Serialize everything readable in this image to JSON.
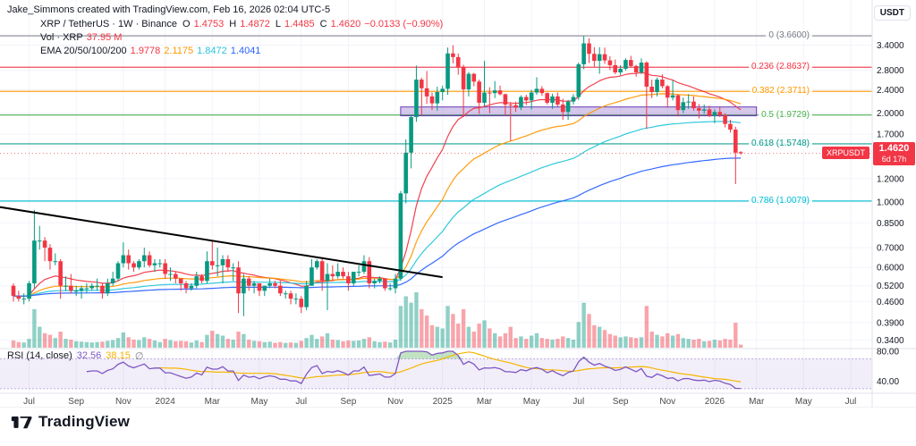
{
  "header": {
    "attribution": "Jake_Simmons created with TradingView.com, Feb 16, 2026 02:04 UTC-5"
  },
  "legend": {
    "title": "XRP / TetherUS · 1W · Binance",
    "o_label": "O",
    "o": "1.4753",
    "h_label": "H",
    "h": "1.4872",
    "l_label": "L",
    "l": "1.4485",
    "c_label": "C",
    "c": "1.4620",
    "change": "−0.0133 (−0.90%)"
  },
  "volume_legend": {
    "title": "Vol · XRP",
    "value": "37.95 M"
  },
  "ema_legend": {
    "title": "EMA 20/50/100/200",
    "v20": "1.9778",
    "v50": "2.1175",
    "v100": "1.8472",
    "v200": "1.4041"
  },
  "rsi_legend": {
    "title": "RSI (14, close)",
    "value": "32.56",
    "ma": "38.15",
    "hide_icon": "∅"
  },
  "price_axis": {
    "currency": "USDT",
    "badge_price": "1.4620",
    "badge_countdown": "6d 17h",
    "float_label": "XRPUSDT"
  },
  "rsi_axis": {
    "values": [
      80,
      40
    ]
  },
  "footer": {
    "brand": "TradingView"
  },
  "colors": {
    "up": "#089981",
    "down": "#f23645",
    "vol_up": "rgba(8,153,129,0.45)",
    "vol_down": "rgba(242,54,69,0.45)",
    "ema20": "#f23645",
    "ema50": "#ff9800",
    "ema100": "#26c6da",
    "ema200": "#2962ff",
    "grid": "#f0f3fa",
    "axis_border": "#e0e3eb",
    "text": "#131722",
    "muted": "#787b86",
    "rsi": "#7e57c2",
    "rsi_ma": "#f7b500",
    "rsi_band": "rgba(126,87,194,0.10)",
    "rsi_fill": "rgba(76,175,80,0.35)",
    "zone_fill": "rgba(103,58,183,0.28)",
    "zone_border": "#673ab7",
    "trend": "#000000",
    "badge": "#f23645"
  },
  "chart_data": {
    "type": "candlestick",
    "title": "XRP / TetherUS weekly with EMAs, Fibonacci retracement, volume and RSI",
    "symbol": "XRP/TetherUS",
    "exchange": "Binance",
    "timeframe": "1W",
    "price_scale": "log",
    "ylim": [
      0.34,
      3.7
    ],
    "current_price": 1.462,
    "price_ticks": [
      3.4,
      2.8,
      2.4,
      2.0,
      1.7,
      1.2,
      1.0,
      0.85,
      0.7,
      0.6,
      0.52,
      0.46,
      0.39,
      0.34
    ],
    "time_ticks": [
      {
        "i": 3,
        "t": "Jul"
      },
      {
        "i": 12,
        "t": "Sep"
      },
      {
        "i": 21,
        "t": "Nov"
      },
      {
        "i": 29,
        "t": "2024"
      },
      {
        "i": 38,
        "t": "Mar"
      },
      {
        "i": 47,
        "t": "May"
      },
      {
        "i": 55,
        "t": "Jul"
      },
      {
        "i": 64,
        "t": "Sep"
      },
      {
        "i": 73,
        "t": "Nov"
      },
      {
        "i": 82,
        "t": "2025"
      },
      {
        "i": 90,
        "t": "Mar"
      },
      {
        "i": 99,
        "t": "May"
      },
      {
        "i": 108,
        "t": "Jul"
      },
      {
        "i": 116,
        "t": "Sep"
      },
      {
        "i": 125,
        "t": "Nov"
      },
      {
        "i": 134,
        "t": "2026"
      },
      {
        "i": 142,
        "t": "Mar"
      },
      {
        "i": 151,
        "t": "May"
      },
      {
        "i": 160,
        "t": "Jul"
      }
    ],
    "fib_levels": [
      {
        "label": "0 (3.6600)",
        "price": 3.66,
        "color": "#787b86"
      },
      {
        "label": "0.236 (2.8637)",
        "price": 2.8637,
        "color": "#f23645"
      },
      {
        "label": "0.382 (2.3711)",
        "price": 2.3711,
        "color": "#ff9800"
      },
      {
        "label": "0.5 (1.9729)",
        "price": 1.9729,
        "color": "#4caf50"
      },
      {
        "label": "0.618 (1.5748)",
        "price": 1.5748,
        "color": "#009688"
      },
      {
        "label": "0.786 (1.0079)",
        "price": 1.0079,
        "color": "#00bcd4"
      }
    ],
    "ema_periods": [
      20,
      50,
      100,
      200
    ],
    "trendline": {
      "i1": -4,
      "p1": 0.97,
      "i2": 82,
      "p2": 0.556
    },
    "support_zone": {
      "i1": 74,
      "i2": 142,
      "top": 2.1,
      "bottom": 1.96
    },
    "rsi": {
      "period": 14,
      "current": 32.56,
      "ma": 38.15
    },
    "ohlcv": [
      [
        0.52,
        0.53,
        0.46,
        0.48,
        90
      ],
      [
        0.48,
        0.5,
        0.46,
        0.47,
        70
      ],
      [
        0.47,
        0.49,
        0.45,
        0.47,
        65
      ],
      [
        0.47,
        0.54,
        0.46,
        0.53,
        110
      ],
      [
        0.53,
        0.94,
        0.51,
        0.74,
        480
      ],
      [
        0.74,
        0.83,
        0.69,
        0.74,
        260
      ],
      [
        0.74,
        0.76,
        0.63,
        0.7,
        180
      ],
      [
        0.7,
        0.72,
        0.59,
        0.63,
        160
      ],
      [
        0.63,
        0.67,
        0.61,
        0.63,
        120
      ],
      [
        0.63,
        0.64,
        0.47,
        0.52,
        200
      ],
      [
        0.52,
        0.56,
        0.5,
        0.52,
        110
      ],
      [
        0.52,
        0.57,
        0.49,
        0.5,
        100
      ],
      [
        0.5,
        0.52,
        0.48,
        0.5,
        80
      ],
      [
        0.5,
        0.52,
        0.47,
        0.51,
        75
      ],
      [
        0.51,
        0.53,
        0.49,
        0.51,
        70
      ],
      [
        0.51,
        0.53,
        0.5,
        0.52,
        65
      ],
      [
        0.52,
        0.55,
        0.5,
        0.52,
        70
      ],
      [
        0.52,
        0.53,
        0.47,
        0.49,
        75
      ],
      [
        0.49,
        0.55,
        0.48,
        0.53,
        85
      ],
      [
        0.53,
        0.58,
        0.52,
        0.55,
        95
      ],
      [
        0.55,
        0.63,
        0.54,
        0.62,
        120
      ],
      [
        0.62,
        0.73,
        0.6,
        0.66,
        190
      ],
      [
        0.66,
        0.69,
        0.59,
        0.62,
        130
      ],
      [
        0.62,
        0.63,
        0.58,
        0.6,
        100
      ],
      [
        0.6,
        0.64,
        0.59,
        0.63,
        95
      ],
      [
        0.63,
        0.7,
        0.6,
        0.66,
        130
      ],
      [
        0.66,
        0.68,
        0.6,
        0.61,
        110
      ],
      [
        0.61,
        0.64,
        0.58,
        0.62,
        90
      ],
      [
        0.62,
        0.64,
        0.6,
        0.62,
        70
      ],
      [
        0.62,
        0.64,
        0.55,
        0.57,
        110
      ],
      [
        0.57,
        0.6,
        0.54,
        0.57,
        95
      ],
      [
        0.57,
        0.58,
        0.53,
        0.55,
        80
      ],
      [
        0.55,
        0.55,
        0.5,
        0.53,
        85
      ],
      [
        0.53,
        0.54,
        0.49,
        0.51,
        80
      ],
      [
        0.51,
        0.53,
        0.5,
        0.52,
        65
      ],
      [
        0.52,
        0.58,
        0.51,
        0.56,
        90
      ],
      [
        0.56,
        0.57,
        0.53,
        0.54,
        70
      ],
      [
        0.54,
        0.68,
        0.53,
        0.63,
        160
      ],
      [
        0.63,
        0.74,
        0.59,
        0.61,
        210
      ],
      [
        0.61,
        0.7,
        0.56,
        0.61,
        170
      ],
      [
        0.61,
        0.66,
        0.53,
        0.64,
        150
      ],
      [
        0.64,
        0.66,
        0.58,
        0.6,
        110
      ],
      [
        0.6,
        0.62,
        0.54,
        0.6,
        100
      ],
      [
        0.6,
        0.63,
        0.42,
        0.49,
        200
      ],
      [
        0.49,
        0.57,
        0.41,
        0.55,
        170
      ],
      [
        0.55,
        0.56,
        0.5,
        0.52,
        100
      ],
      [
        0.52,
        0.54,
        0.49,
        0.53,
        85
      ],
      [
        0.53,
        0.53,
        0.48,
        0.5,
        80
      ],
      [
        0.5,
        0.52,
        0.48,
        0.52,
        70
      ],
      [
        0.52,
        0.55,
        0.51,
        0.53,
        75
      ],
      [
        0.53,
        0.54,
        0.51,
        0.52,
        60
      ],
      [
        0.52,
        0.54,
        0.48,
        0.49,
        70
      ],
      [
        0.49,
        0.5,
        0.47,
        0.49,
        60
      ],
      [
        0.49,
        0.5,
        0.45,
        0.47,
        65
      ],
      [
        0.47,
        0.49,
        0.45,
        0.47,
        60
      ],
      [
        0.47,
        0.48,
        0.42,
        0.44,
        85
      ],
      [
        0.44,
        0.54,
        0.43,
        0.52,
        120
      ],
      [
        0.52,
        0.64,
        0.52,
        0.6,
        160
      ],
      [
        0.6,
        0.64,
        0.59,
        0.63,
        110
      ],
      [
        0.63,
        0.65,
        0.5,
        0.54,
        140
      ],
      [
        0.54,
        0.62,
        0.43,
        0.57,
        180
      ],
      [
        0.57,
        0.61,
        0.54,
        0.56,
        100
      ],
      [
        0.56,
        0.62,
        0.55,
        0.58,
        95
      ],
      [
        0.58,
        0.6,
        0.55,
        0.56,
        80
      ],
      [
        0.56,
        0.58,
        0.5,
        0.53,
        90
      ],
      [
        0.53,
        0.58,
        0.52,
        0.58,
        85
      ],
      [
        0.58,
        0.61,
        0.56,
        0.58,
        90
      ],
      [
        0.58,
        0.66,
        0.57,
        0.63,
        110
      ],
      [
        0.63,
        0.65,
        0.51,
        0.53,
        130
      ],
      [
        0.53,
        0.55,
        0.51,
        0.54,
        80
      ],
      [
        0.54,
        0.56,
        0.53,
        0.55,
        70
      ],
      [
        0.55,
        0.55,
        0.5,
        0.51,
        75
      ],
      [
        0.51,
        0.53,
        0.5,
        0.51,
        65
      ],
      [
        0.51,
        0.57,
        0.49,
        0.55,
        100
      ],
      [
        0.55,
        1.09,
        0.54,
        1.07,
        520
      ],
      [
        1.07,
        1.63,
        0.99,
        1.47,
        640
      ],
      [
        1.47,
        1.97,
        1.3,
        1.94,
        560
      ],
      [
        1.94,
        2.9,
        1.87,
        2.6,
        690
      ],
      [
        2.6,
        2.64,
        1.96,
        2.43,
        480
      ],
      [
        2.43,
        2.78,
        2.15,
        2.28,
        400
      ],
      [
        2.28,
        2.35,
        2.05,
        2.16,
        280
      ],
      [
        2.16,
        2.46,
        2.04,
        2.36,
        260
      ],
      [
        2.36,
        2.48,
        2.21,
        2.42,
        240
      ],
      [
        2.42,
        3.34,
        2.31,
        3.19,
        520
      ],
      [
        3.19,
        3.4,
        2.95,
        3.1,
        420
      ],
      [
        3.1,
        3.19,
        2.7,
        2.87,
        300
      ],
      [
        2.87,
        2.92,
        1.94,
        2.41,
        480
      ],
      [
        2.41,
        2.76,
        2.28,
        2.72,
        260
      ],
      [
        2.72,
        2.74,
        2.47,
        2.56,
        200
      ],
      [
        2.56,
        2.6,
        1.99,
        2.17,
        300
      ],
      [
        2.17,
        3.01,
        2.11,
        2.35,
        340
      ],
      [
        2.35,
        2.45,
        2.0,
        2.34,
        240
      ],
      [
        2.34,
        2.57,
        2.25,
        2.39,
        180
      ],
      [
        2.39,
        2.48,
        2.3,
        2.32,
        140
      ],
      [
        2.32,
        2.33,
        1.96,
        2.14,
        180
      ],
      [
        2.14,
        2.18,
        1.61,
        2.13,
        260
      ],
      [
        2.13,
        2.19,
        2.02,
        2.09,
        120
      ],
      [
        2.09,
        2.3,
        2.05,
        2.27,
        140
      ],
      [
        2.27,
        2.31,
        2.13,
        2.21,
        110
      ],
      [
        2.21,
        2.4,
        2.06,
        2.35,
        150
      ],
      [
        2.35,
        2.65,
        2.31,
        2.42,
        180
      ],
      [
        2.42,
        2.47,
        2.29,
        2.34,
        120
      ],
      [
        2.34,
        2.35,
        2.14,
        2.17,
        110
      ],
      [
        2.17,
        2.33,
        2.07,
        2.28,
        100
      ],
      [
        2.28,
        2.35,
        2.11,
        2.14,
        110
      ],
      [
        2.14,
        2.24,
        1.9,
        2.02,
        140
      ],
      [
        2.02,
        2.22,
        1.9,
        2.19,
        120
      ],
      [
        2.19,
        2.32,
        2.14,
        2.27,
        100
      ],
      [
        2.27,
        2.97,
        2.22,
        2.93,
        320
      ],
      [
        2.93,
        3.66,
        2.82,
        3.45,
        560
      ],
      [
        3.45,
        3.59,
        2.96,
        3.18,
        420
      ],
      [
        3.18,
        3.35,
        2.87,
        3.01,
        280
      ],
      [
        3.01,
        3.35,
        2.72,
        3.17,
        260
      ],
      [
        3.17,
        3.34,
        2.94,
        3.02,
        220
      ],
      [
        3.02,
        3.12,
        2.8,
        2.91,
        170
      ],
      [
        2.91,
        3.04,
        2.71,
        2.75,
        150
      ],
      [
        2.75,
        2.91,
        2.69,
        2.83,
        130
      ],
      [
        2.83,
        3.07,
        2.79,
        3.03,
        140
      ],
      [
        3.03,
        3.13,
        2.86,
        2.89,
        130
      ],
      [
        2.89,
        2.92,
        2.66,
        2.75,
        120
      ],
      [
        2.75,
        3.07,
        2.71,
        2.97,
        130
      ],
      [
        2.97,
        3.0,
        1.77,
        2.46,
        520
      ],
      [
        2.46,
        2.6,
        2.25,
        2.36,
        200
      ],
      [
        2.36,
        2.64,
        2.28,
        2.6,
        160
      ],
      [
        2.6,
        2.71,
        2.43,
        2.47,
        140
      ],
      [
        2.47,
        2.49,
        2.09,
        2.26,
        180
      ],
      [
        2.26,
        2.59,
        2.21,
        2.3,
        150
      ],
      [
        2.3,
        2.32,
        1.95,
        2.05,
        170
      ],
      [
        2.05,
        2.26,
        2.0,
        2.18,
        120
      ],
      [
        2.18,
        2.32,
        2.07,
        2.19,
        110
      ],
      [
        2.19,
        2.28,
        2.04,
        2.08,
        100
      ],
      [
        2.08,
        2.15,
        1.92,
        2.04,
        110
      ],
      [
        2.04,
        2.14,
        1.99,
        2.06,
        80
      ],
      [
        2.06,
        2.12,
        1.94,
        1.96,
        85
      ],
      [
        1.96,
        2.06,
        1.85,
        2.02,
        100
      ],
      [
        2.02,
        2.1,
        1.94,
        1.97,
        90
      ],
      [
        1.97,
        2.0,
        1.79,
        1.84,
        110
      ],
      [
        1.84,
        1.9,
        1.72,
        1.76,
        100
      ],
      [
        1.76,
        1.8,
        1.15,
        1.47,
        310
      ],
      [
        1.4753,
        1.4872,
        1.4485,
        1.462,
        37.95
      ]
    ]
  }
}
